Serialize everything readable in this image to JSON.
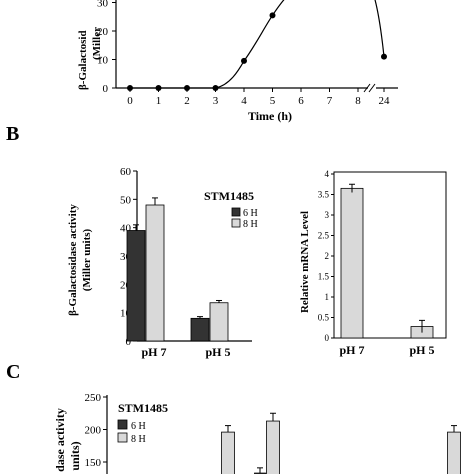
{
  "chart_data": [
    {
      "panel": "A",
      "type": "line",
      "ylabel": "β-Galactosidase activity (Miller units)",
      "ylabel_visible": "β-Galactosid",
      "ylabel_visible_2": "(Miller",
      "xlabel": "Time (h)",
      "y_ticks": [
        0,
        10,
        20,
        30
      ],
      "x_ticks": [
        "0",
        "1",
        "2",
        "3",
        "4",
        "5",
        "6",
        "7",
        "8",
        "24"
      ],
      "series": [
        {
          "x": [
            0,
            1,
            2,
            3,
            4,
            5,
            6,
            24
          ],
          "y": [
            0,
            0,
            0,
            0,
            9.5,
            25.5,
            36,
            11
          ]
        }
      ]
    },
    {
      "panel": "B",
      "type": "bar",
      "title": "STM1485",
      "ylabel_line1": "β-Galactosidase activity",
      "ylabel_line2": "(Miller units)",
      "categories": [
        "pH 7",
        "pH 5"
      ],
      "ylim": [
        0,
        60
      ],
      "y_ticks": [
        0,
        10,
        20,
        30,
        40,
        50,
        60
      ],
      "legend": [
        "6 H",
        "8 H"
      ],
      "series": [
        {
          "name": "6 H",
          "color": "#333333",
          "values": [
            39,
            8
          ],
          "errors": [
            2,
            0.6
          ]
        },
        {
          "name": "8 H",
          "color": "#d9d9d9",
          "values": [
            48,
            13.5
          ],
          "errors": [
            2.5,
            0.8
          ]
        }
      ]
    },
    {
      "panel": "B2",
      "type": "bar",
      "ylabel": "Relative mRNA Level",
      "categories": [
        "pH 7",
        "pH 5"
      ],
      "ylim": [
        0,
        4
      ],
      "y_ticks": [
        0,
        0.5,
        1,
        1.5,
        2,
        2.5,
        3,
        3.5,
        4
      ],
      "series": [
        {
          "color": "#d9d9d9",
          "values": [
            3.65,
            0.28
          ],
          "errors": [
            0.1,
            0.15
          ]
        }
      ]
    },
    {
      "panel": "C",
      "type": "bar",
      "title": "STM1485",
      "ylabel_line1": "dase activity",
      "ylabel_line2": "units)",
      "y_ticks": [
        150,
        200,
        250
      ],
      "legend": [
        "6 H",
        "8 H"
      ],
      "bars": [
        {
          "color": "#d9d9d9",
          "value": 196,
          "error": 10
        },
        {
          "color": "#333333",
          "value": 133,
          "error": 8
        },
        {
          "color": "#d9d9d9",
          "value": 213,
          "error": 12
        },
        {
          "color": "#333333",
          "value": 105,
          "error": 5
        },
        {
          "color": "#d9d9d9",
          "value": 196,
          "error": 10
        }
      ]
    }
  ],
  "labels": {
    "panel_b": "B",
    "panel_c": "C"
  }
}
